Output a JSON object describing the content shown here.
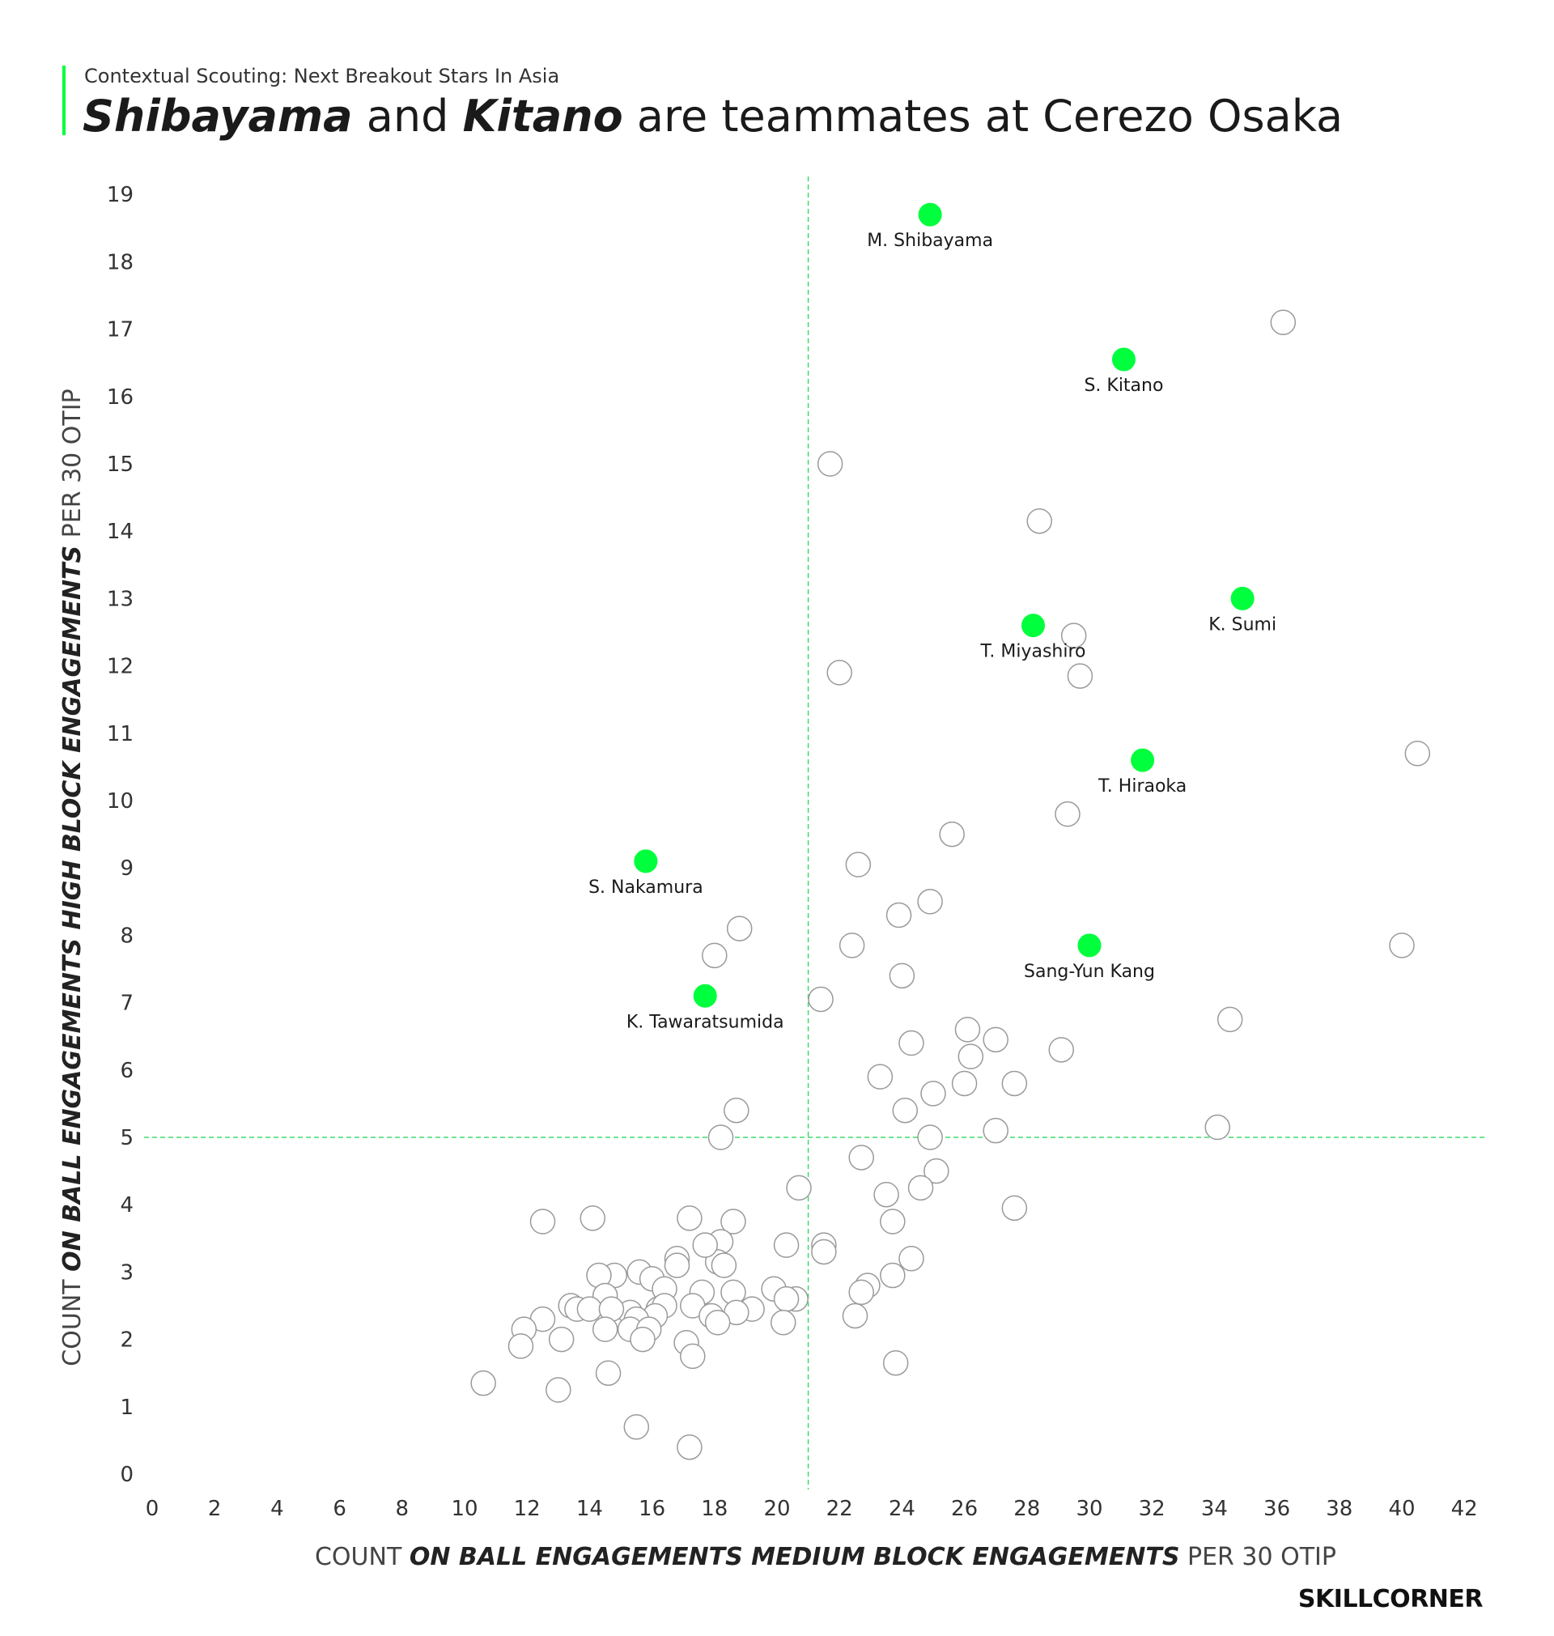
{
  "header": {
    "subtitle": "Contextual Scouting: Next Breakout Stars In Asia",
    "title_part1": "Shibayama",
    "title_part2": " and ",
    "title_part3": "Kitano",
    "title_part4": " are teammates at Cerezo Osaka"
  },
  "brand": "SKILLCORNER",
  "colors": {
    "highlight": "#00ff3c",
    "point_fill": "#ffffff",
    "point_stroke": "#9a9a9a",
    "reference_line": "#3ddc6a"
  },
  "chart_data": {
    "type": "scatter",
    "xlabel_prefix": "COUNT ",
    "xlabel_emphasis": "ON BALL ENGAGEMENTS MEDIUM BLOCK ENGAGEMENTS",
    "xlabel_suffix": " PER 30 OTIP",
    "ylabel_prefix": "COUNT ",
    "ylabel_emphasis": "ON BALL ENGAGEMENTS HIGH BLOCK ENGAGEMENTS",
    "ylabel_suffix": " PER 30 OTIP",
    "xlim": [
      0,
      43
    ],
    "ylim": [
      0,
      19.5
    ],
    "x_ticks": [
      0,
      2,
      4,
      6,
      8,
      10,
      12,
      14,
      16,
      18,
      20,
      22,
      24,
      26,
      28,
      30,
      32,
      34,
      36,
      38,
      40,
      42
    ],
    "y_ticks": [
      0,
      1,
      2,
      3,
      4,
      5,
      6,
      7,
      8,
      9,
      10,
      11,
      12,
      13,
      14,
      15,
      16,
      17,
      18,
      19
    ],
    "reference_lines": {
      "x": 21,
      "y": 5
    },
    "grid": false,
    "highlighted": [
      {
        "name": "M. Shibayama",
        "x": 24.9,
        "y": 18.7
      },
      {
        "name": "S. Kitano",
        "x": 31.1,
        "y": 16.55
      },
      {
        "name": "K. Sumi",
        "x": 34.9,
        "y": 13.0
      },
      {
        "name": "T. Miyashiro",
        "x": 28.2,
        "y": 12.6
      },
      {
        "name": "T. Hiraoka",
        "x": 31.7,
        "y": 10.6
      },
      {
        "name": "S. Nakamura",
        "x": 15.8,
        "y": 9.1
      },
      {
        "name": "Sang-Yun Kang",
        "x": 30.0,
        "y": 7.85
      },
      {
        "name": "K. Tawaratsumida",
        "x": 17.7,
        "y": 7.1
      }
    ],
    "others": [
      [
        36.2,
        17.1
      ],
      [
        21.7,
        15.0
      ],
      [
        28.4,
        14.15
      ],
      [
        29.5,
        12.45
      ],
      [
        29.7,
        11.85
      ],
      [
        22.0,
        11.9
      ],
      [
        40.5,
        10.7
      ],
      [
        29.3,
        9.8
      ],
      [
        25.6,
        9.5
      ],
      [
        22.6,
        9.05
      ],
      [
        24.9,
        8.5
      ],
      [
        23.9,
        8.3
      ],
      [
        18.8,
        8.1
      ],
      [
        18.0,
        7.7
      ],
      [
        22.4,
        7.85
      ],
      [
        40.0,
        7.85
      ],
      [
        24.0,
        7.4
      ],
      [
        21.4,
        7.05
      ],
      [
        34.5,
        6.75
      ],
      [
        26.1,
        6.6
      ],
      [
        27.0,
        6.45
      ],
      [
        24.3,
        6.4
      ],
      [
        29.1,
        6.3
      ],
      [
        26.2,
        6.2
      ],
      [
        23.3,
        5.9
      ],
      [
        26.0,
        5.8
      ],
      [
        27.6,
        5.8
      ],
      [
        25.0,
        5.65
      ],
      [
        18.7,
        5.4
      ],
      [
        24.1,
        5.4
      ],
      [
        34.1,
        5.15
      ],
      [
        18.2,
        5.0
      ],
      [
        27.0,
        5.1
      ],
      [
        24.9,
        5.0
      ],
      [
        22.7,
        4.7
      ],
      [
        25.1,
        4.5
      ],
      [
        20.7,
        4.25
      ],
      [
        24.6,
        4.25
      ],
      [
        23.5,
        4.15
      ],
      [
        27.6,
        3.95
      ],
      [
        12.5,
        3.75
      ],
      [
        14.1,
        3.8
      ],
      [
        17.2,
        3.8
      ],
      [
        18.6,
        3.75
      ],
      [
        23.7,
        3.75
      ],
      [
        18.2,
        3.45
      ],
      [
        20.3,
        3.4
      ],
      [
        21.5,
        3.4
      ],
      [
        21.5,
        3.3
      ],
      [
        16.8,
        3.2
      ],
      [
        24.3,
        3.2
      ],
      [
        18.1,
        3.15
      ],
      [
        17.7,
        3.4
      ],
      [
        18.3,
        3.1
      ],
      [
        14.8,
        2.95
      ],
      [
        14.3,
        2.95
      ],
      [
        15.6,
        3.0
      ],
      [
        23.7,
        2.95
      ],
      [
        16.0,
        2.9
      ],
      [
        16.8,
        3.1
      ],
      [
        22.9,
        2.8
      ],
      [
        16.4,
        2.75
      ],
      [
        19.9,
        2.75
      ],
      [
        22.7,
        2.7
      ],
      [
        14.5,
        2.65
      ],
      [
        17.6,
        2.7
      ],
      [
        18.6,
        2.7
      ],
      [
        20.6,
        2.6
      ],
      [
        20.3,
        2.6
      ],
      [
        13.4,
        2.5
      ],
      [
        13.6,
        2.45
      ],
      [
        14.0,
        2.45
      ],
      [
        15.3,
        2.4
      ],
      [
        16.2,
        2.45
      ],
      [
        16.4,
        2.5
      ],
      [
        17.3,
        2.5
      ],
      [
        19.2,
        2.45
      ],
      [
        18.7,
        2.4
      ],
      [
        14.7,
        2.45
      ],
      [
        16.1,
        2.35
      ],
      [
        17.9,
        2.35
      ],
      [
        15.5,
        2.3
      ],
      [
        12.5,
        2.3
      ],
      [
        18.1,
        2.25
      ],
      [
        20.2,
        2.25
      ],
      [
        22.5,
        2.35
      ],
      [
        11.9,
        2.15
      ],
      [
        14.5,
        2.15
      ],
      [
        15.3,
        2.15
      ],
      [
        15.9,
        2.15
      ],
      [
        13.1,
        2.0
      ],
      [
        15.7,
        2.0
      ],
      [
        17.1,
        1.95
      ],
      [
        11.8,
        1.9
      ],
      [
        17.3,
        1.75
      ],
      [
        23.8,
        1.65
      ],
      [
        14.6,
        1.5
      ],
      [
        10.6,
        1.35
      ],
      [
        13.0,
        1.25
      ],
      [
        15.5,
        0.7
      ],
      [
        17.2,
        0.4
      ]
    ]
  }
}
